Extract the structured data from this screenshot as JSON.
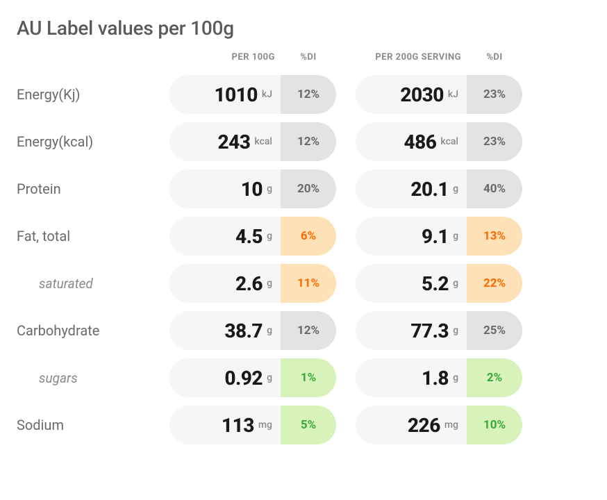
{
  "title": "AU Label values per 100g",
  "columns": {
    "per100_label": "PER 100G",
    "di_label": "%DI",
    "per200_label": "PER 200G SERVING"
  },
  "colors": {
    "background": "#ffffff",
    "pill_bg": "#f6f6f6",
    "neutral_bg": "#e3e3e3",
    "neutral_text": "#6a6a6a",
    "orange_bg": "#ffe1b8",
    "orange_text": "#ff6a00",
    "green_bg": "#d7f2bb",
    "green_text": "#3aa93a",
    "label_text": "#6a6a6a",
    "value_text": "#1a1a1a",
    "header_text": "#8a8a8a"
  },
  "rows": [
    {
      "label": "Energy(Kj)",
      "sub": false,
      "unit": "kJ",
      "v100": "1010",
      "di100": "12%",
      "di100_style": "neutral",
      "v200": "2030",
      "di200": "23%",
      "di200_style": "neutral"
    },
    {
      "label": "Energy(kcal)",
      "sub": false,
      "unit": "kcal",
      "v100": "243",
      "di100": "12%",
      "di100_style": "neutral",
      "v200": "486",
      "di200": "23%",
      "di200_style": "neutral"
    },
    {
      "label": "Protein",
      "sub": false,
      "unit": "g",
      "v100": "10",
      "di100": "20%",
      "di100_style": "neutral",
      "v200": "20.1",
      "di200": "40%",
      "di200_style": "neutral"
    },
    {
      "label": "Fat, total",
      "sub": false,
      "unit": "g",
      "v100": "4.5",
      "di100": "6%",
      "di100_style": "orange",
      "v200": "9.1",
      "di200": "13%",
      "di200_style": "orange"
    },
    {
      "label": "saturated",
      "sub": true,
      "unit": "g",
      "v100": "2.6",
      "di100": "11%",
      "di100_style": "orange",
      "v200": "5.2",
      "di200": "22%",
      "di200_style": "orange"
    },
    {
      "label": "Carbohydrate",
      "sub": false,
      "unit": "g",
      "v100": "38.7",
      "di100": "12%",
      "di100_style": "neutral",
      "v200": "77.3",
      "di200": "25%",
      "di200_style": "neutral"
    },
    {
      "label": "sugars",
      "sub": true,
      "unit": "g",
      "v100": "0.92",
      "di100": "1%",
      "di100_style": "green",
      "v200": "1.8",
      "di200": "2%",
      "di200_style": "green"
    },
    {
      "label": "Sodium",
      "sub": false,
      "unit": "mg",
      "v100": "113",
      "di100": "5%",
      "di100_style": "green",
      "v200": "226",
      "di200": "10%",
      "di200_style": "green"
    }
  ]
}
